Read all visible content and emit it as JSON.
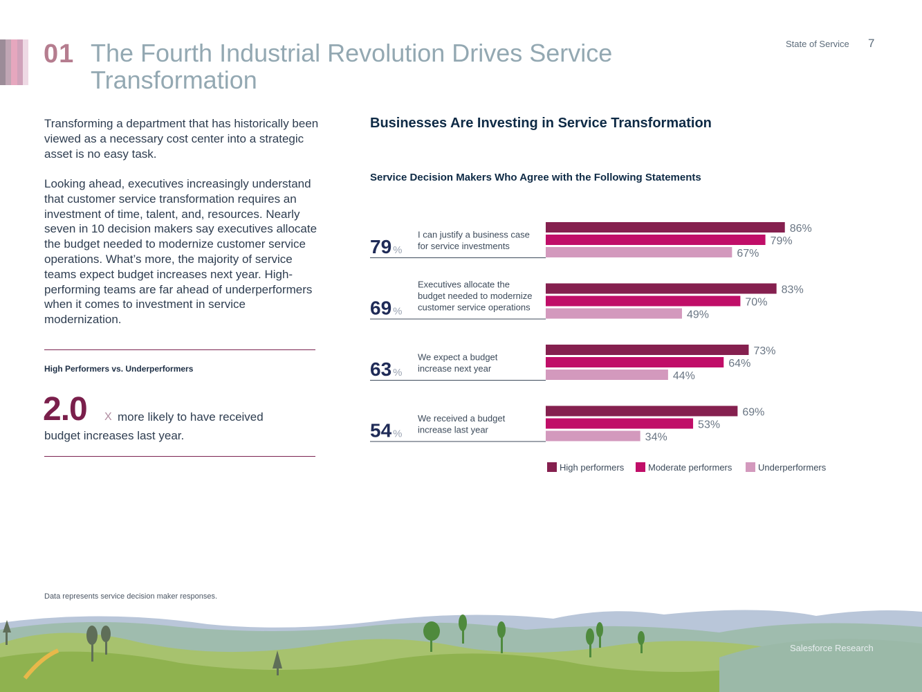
{
  "header": {
    "section_number": "01",
    "title": "The Fourth Industrial Revolution Drives Service Transformation",
    "report_name": "State of Service",
    "page_number": "7"
  },
  "intro": {
    "paragraph_1": "Transforming a department that has historically been viewed as a necessary cost center into a strategic asset is no easy task.",
    "paragraph_2": "Looking ahead, executives increasingly understand that customer service transformation requires an investment of time, talent, and, resources. Nearly seven in 10 decision makers say executives allocate the budget needed to modernize customer service operations. What’s more, the majority of service teams expect budget increases next year. High-performing teams are far ahead of underperformers when it comes to investment in service modernization."
  },
  "highlight": {
    "title": "High Performers vs. Underperformers",
    "multiplier": "2.0",
    "unit": "X",
    "text_line1": "more likely to have received",
    "text_line2": "budget increases last year."
  },
  "chart_data": {
    "type": "bar",
    "orientation": "horizontal",
    "title": "Businesses Are Investing in Service Transformation",
    "subtitle": "Service Decision Makers Who Agree with the Following Statements",
    "categories": [
      "I can justify a business case for service investments",
      "Executives allocate the budget needed to modernize customer service operations",
      "We expect a budget increase next year",
      "We received a budget increase last year"
    ],
    "category_lines": [
      [
        "I can justify a business case",
        "for service investments"
      ],
      [
        "Executives allocate the",
        "budget needed to modernize",
        "customer service operations"
      ],
      [
        "We expect a budget",
        "increase next year"
      ],
      [
        "We received a budget",
        "increase last year"
      ]
    ],
    "overall": [
      79,
      69,
      63,
      54
    ],
    "series": [
      {
        "name": "High performers",
        "values": [
          86,
          83,
          73,
          69
        ],
        "color": "#85204f"
      },
      {
        "name": "Moderate performers",
        "values": [
          79,
          70,
          64,
          53
        ],
        "color": "#c00e68"
      },
      {
        "name": "Underperformers",
        "values": [
          67,
          49,
          44,
          34
        ],
        "color": "#d399bd"
      }
    ],
    "value_suffix": "%",
    "legend_position": "bottom"
  },
  "footer": {
    "note": "Data represents service decision maker responses.",
    "brand": "Salesforce Research"
  },
  "colors": {
    "stripes": [
      "#9c8c98",
      "#c0a6b4",
      "#e6a7be",
      "#d0a2ba",
      "#eed9e4"
    ]
  }
}
